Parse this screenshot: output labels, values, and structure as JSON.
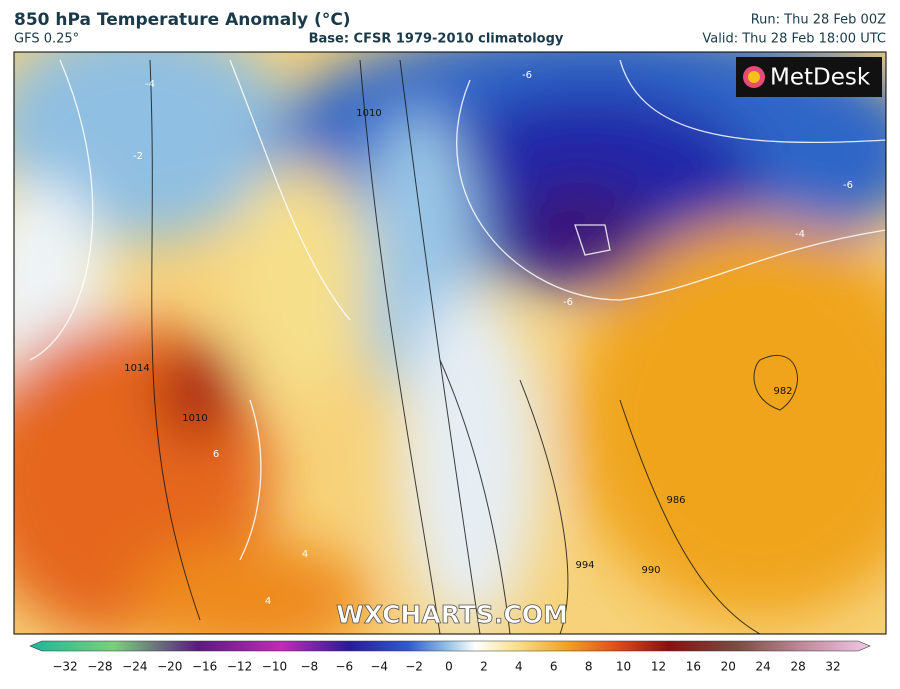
{
  "header": {
    "title": "850 hPa Temperature Anomaly (°C)",
    "model": "GFS 0.25°",
    "base": "Base: CFSR 1979-2010 climatology",
    "run": "Run: Thu 28 Feb 00Z",
    "valid": "Valid: Thu 28 Feb 18:00 UTC"
  },
  "logo": "MetDesk",
  "watermark": "WXCHARTS.COM",
  "map": {
    "contour_labels": [
      "-4",
      "-2",
      "-6",
      "-6",
      "-6",
      "-4",
      "1010",
      "1014",
      "1010",
      "6",
      "982",
      "986",
      "990",
      "994",
      "4",
      "4"
    ]
  },
  "colorbar": {
    "ticks": [
      "−32",
      "−28",
      "−24",
      "−20",
      "−16",
      "−12",
      "−10",
      "−8",
      "−6",
      "−4",
      "−2",
      "0",
      "2",
      "4",
      "6",
      "8",
      "10",
      "12",
      "16",
      "20",
      "24",
      "28",
      "32"
    ]
  }
}
